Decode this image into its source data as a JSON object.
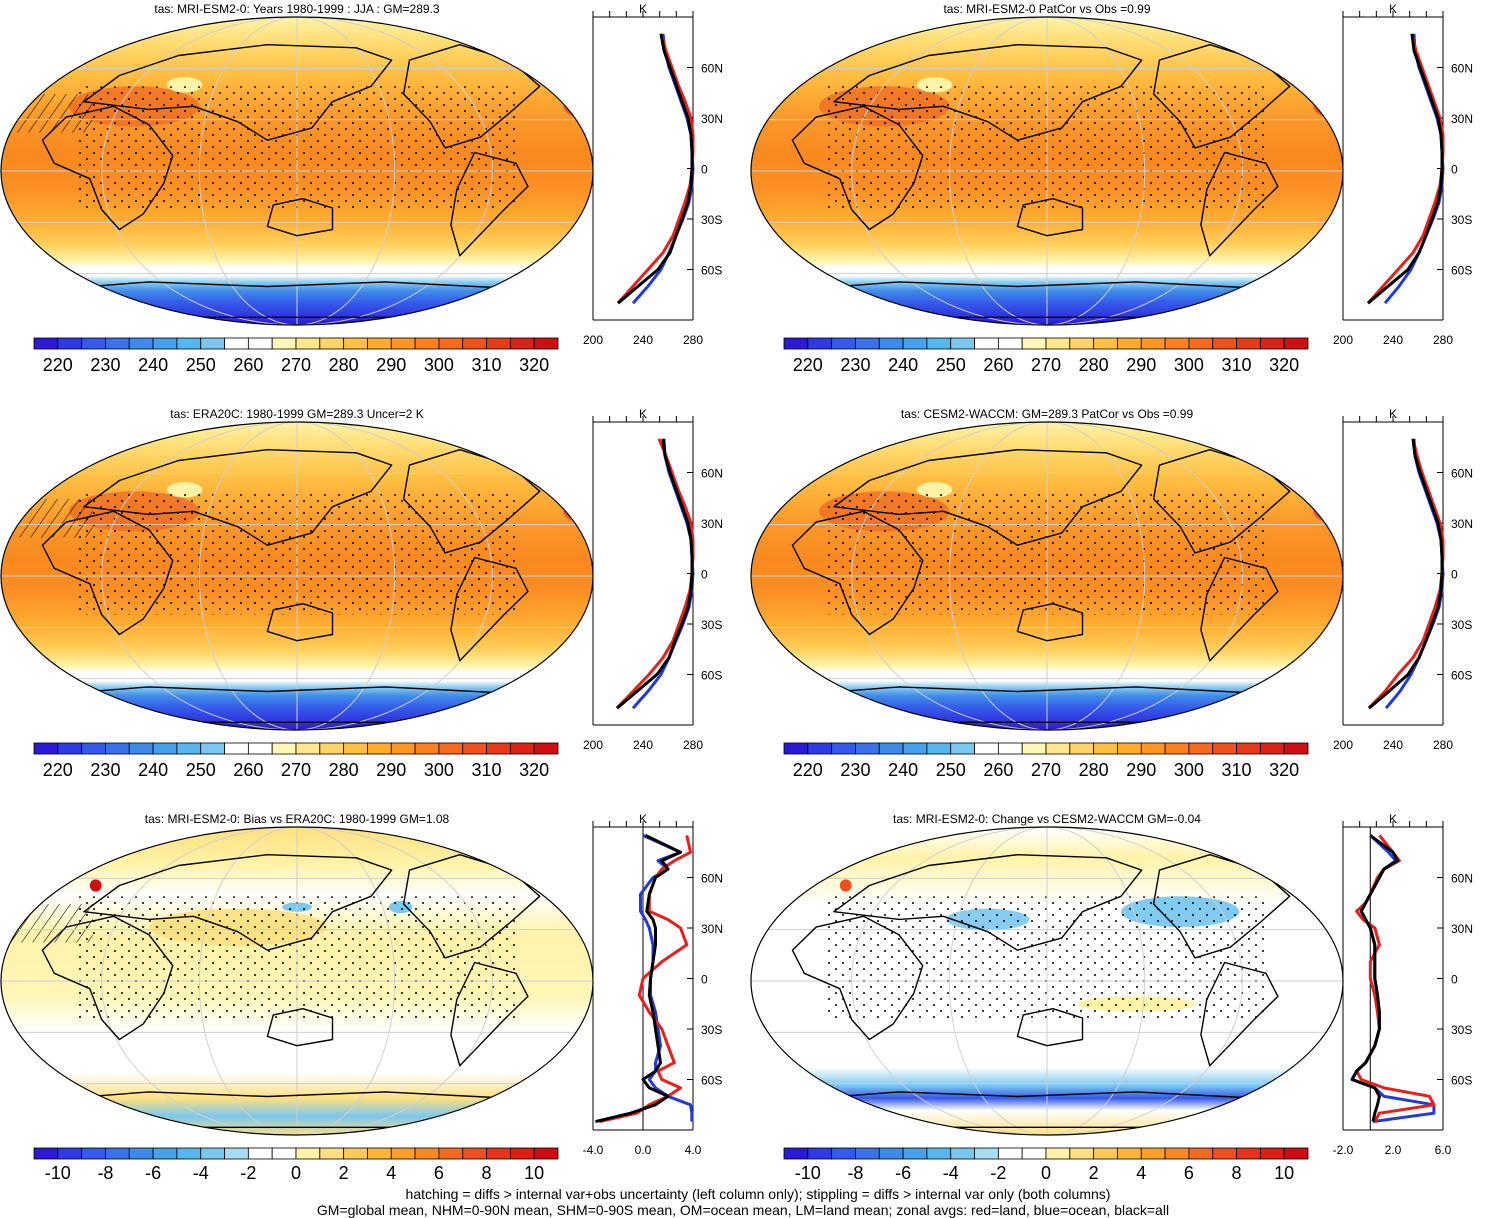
{
  "colors": {
    "temp_palette": [
      "#2a1ad8",
      "#2f3ae6",
      "#3559ea",
      "#3b72ea",
      "#3f8be9",
      "#45a1ea",
      "#55b7ee",
      "#7ac7f0",
      "#ffffff",
      "#ffffff",
      "#fff8b8",
      "#ffe98c",
      "#ffd468",
      "#ffc043",
      "#ffac2c",
      "#ff9822",
      "#fb8021",
      "#f56a1f",
      "#ef521c",
      "#e63a19",
      "#dc2216",
      "#cf0f12"
    ],
    "diff_palette": [
      "#2a1ad8",
      "#2f3ae6",
      "#3559ea",
      "#3b72ea",
      "#3f8be9",
      "#45a1ea",
      "#55b7ee",
      "#7ac7f0",
      "#a8dbf4",
      "#ffffff",
      "#ffffff",
      "#fff3a8",
      "#ffe080",
      "#ffc95a",
      "#ffb53a",
      "#ff9f28",
      "#fb8821",
      "#f56a1f",
      "#ef4f1c",
      "#e63418",
      "#dc1e15",
      "#cf0c12"
    ],
    "land": "#e6201c",
    "ocean": "#1f3bd8",
    "all": "#000000"
  },
  "footer": {
    "line1": "hatching = diffs > internal var+obs uncertainty (left column only); stippling = diffs > internal var only (both columns)",
    "line2": "GM=global mean, NHM=0-90N mean, SHM=0-90S mean, OM=ocean mean, LM=land mean; zonal avgs: red=land, blue=ocean, black=all"
  },
  "panels": [
    {
      "title": "tas: MRI-ESM2-0: Years 1980-1999 : JJA : GM=289.3",
      "colorbar": "temp",
      "profile_axis_label": "K",
      "profile_xticks": [
        "200",
        "240",
        "280"
      ]
    },
    {
      "title": "tas: MRI-ESM2-0 PatCor vs Obs =0.99",
      "colorbar": "temp",
      "profile_axis_label": "K",
      "profile_xticks": [
        "200",
        "240",
        "280"
      ]
    },
    {
      "title": "tas: ERA20C: 1980-1999 GM=289.3 Uncer=2 K",
      "colorbar": "temp",
      "profile_axis_label": "K",
      "profile_xticks": [
        "200",
        "240",
        "280"
      ]
    },
    {
      "title": "tas: CESM2-WACCM: GM=289.3 PatCor vs Obs =0.99",
      "colorbar": "temp",
      "profile_axis_label": "K",
      "profile_xticks": [
        "200",
        "240",
        "280"
      ]
    },
    {
      "title": "tas: MRI-ESM2-0: Bias vs ERA20C: 1980-1999 GM=1.08",
      "colorbar": "diff",
      "profile_axis_label": "K",
      "profile_xticks": [
        "-4.0",
        "0.0",
        "4.0"
      ]
    },
    {
      "title": "tas: MRI-ESM2-0: Change vs CESM2-WACCM GM=-0.04",
      "colorbar": "diff",
      "profile_axis_label": "K",
      "profile_xticks": [
        "-2.0",
        "2.0",
        "6.0"
      ]
    }
  ],
  "colorbars": {
    "temp": {
      "labels": [
        "220",
        "230",
        "240",
        "250",
        "260",
        "270",
        "280",
        "290",
        "300",
        "310",
        "320"
      ]
    },
    "diff": {
      "labels": [
        "-10",
        "-8",
        "-6",
        "-4",
        "-2",
        "0",
        "2",
        "4",
        "6",
        "8",
        "10"
      ]
    }
  },
  "chart_data": [
    {
      "type": "heatmap",
      "map": "global surface air temperature (tas)",
      "title": "tas: MRI-ESM2-0: Years 1980-1999 : JJA : GM=289.3",
      "colorbar_range": [
        215,
        325
      ],
      "units": "K",
      "lat_ticks": [
        "60N",
        "30N",
        "0",
        "30S",
        "60S"
      ],
      "zonal_mean": {
        "lat": [
          80,
          70,
          60,
          50,
          40,
          30,
          20,
          10,
          0,
          -10,
          -20,
          -30,
          -40,
          -50,
          -60,
          -70,
          -80
        ],
        "all": [
          268,
          271,
          277,
          283,
          289,
          295,
          298,
          299,
          299,
          298,
          295,
          289,
          283,
          277,
          265,
          245,
          225
        ],
        "land": [
          268,
          273,
          279,
          285,
          292,
          298,
          300,
          300,
          299,
          297,
          292,
          286,
          280,
          270,
          255,
          240,
          225
        ],
        "ocean": [
          270,
          272,
          276,
          282,
          288,
          294,
          298,
          299,
          300,
          299,
          296,
          290,
          283,
          276,
          268,
          255,
          240
        ],
        "xlim": [
          200,
          300
        ]
      }
    },
    {
      "type": "heatmap",
      "map": "global surface air temperature (tas)",
      "title": "tas: MRI-ESM2-0 PatCor vs Obs =0.99",
      "colorbar_range": [
        215,
        325
      ],
      "units": "K",
      "lat_ticks": [
        "60N",
        "30N",
        "0",
        "30S",
        "60S"
      ],
      "zonal_mean": {
        "lat": [
          80,
          70,
          60,
          50,
          40,
          30,
          20,
          10,
          0,
          -10,
          -20,
          -30,
          -40,
          -50,
          -60,
          -70,
          -80
        ],
        "all": [
          269,
          271,
          277,
          283,
          289,
          295,
          298,
          299,
          299,
          298,
          295,
          289,
          283,
          276,
          265,
          245,
          225
        ],
        "land": [
          269,
          273,
          279,
          285,
          291,
          297,
          300,
          300,
          299,
          297,
          292,
          286,
          280,
          270,
          255,
          240,
          225
        ],
        "ocean": [
          271,
          272,
          276,
          282,
          288,
          294,
          298,
          299,
          300,
          299,
          296,
          290,
          283,
          276,
          268,
          256,
          242
        ],
        "xlim": [
          200,
          300
        ]
      }
    },
    {
      "type": "heatmap",
      "map": "global surface air temperature (tas)",
      "title": "tas: ERA20C: 1980-1999 GM=289.3 Uncer=2 K",
      "colorbar_range": [
        215,
        325
      ],
      "units": "K",
      "lat_ticks": [
        "60N",
        "30N",
        "0",
        "30S",
        "60S"
      ],
      "zonal_mean": {
        "lat": [
          80,
          70,
          60,
          50,
          40,
          30,
          20,
          10,
          0,
          -10,
          -20,
          -30,
          -40,
          -50,
          -60,
          -70,
          -80
        ],
        "all": [
          270,
          272,
          277,
          283,
          289,
          295,
          298,
          299,
          299,
          298,
          295,
          289,
          282,
          276,
          264,
          244,
          224
        ],
        "land": [
          266,
          273,
          279,
          285,
          292,
          298,
          300,
          300,
          299,
          297,
          292,
          286,
          280,
          270,
          256,
          240,
          224
        ],
        "ocean": [
          271,
          272,
          276,
          282,
          288,
          294,
          298,
          299,
          300,
          299,
          296,
          290,
          283,
          276,
          268,
          255,
          240
        ],
        "xlim": [
          200,
          300
        ]
      }
    },
    {
      "type": "heatmap",
      "map": "global surface air temperature (tas)",
      "title": "tas: CESM2-WACCM: GM=289.3 PatCor vs Obs =0.99",
      "colorbar_range": [
        215,
        325
      ],
      "units": "K",
      "lat_ticks": [
        "60N",
        "30N",
        "0",
        "30S",
        "60S"
      ],
      "zonal_mean": {
        "lat": [
          80,
          70,
          60,
          50,
          40,
          30,
          20,
          10,
          0,
          -10,
          -20,
          -30,
          -40,
          -50,
          -60,
          -70,
          -80
        ],
        "all": [
          270,
          272,
          277,
          283,
          289,
          295,
          298,
          299,
          299,
          298,
          295,
          289,
          283,
          276,
          265,
          246,
          226
        ],
        "land": [
          270,
          274,
          279,
          285,
          291,
          297,
          300,
          300,
          299,
          297,
          292,
          286,
          280,
          270,
          255,
          242,
          226
        ],
        "ocean": [
          271,
          272,
          276,
          282,
          288,
          294,
          298,
          299,
          300,
          299,
          296,
          290,
          283,
          276,
          268,
          257,
          243
        ],
        "xlim": [
          200,
          300
        ]
      }
    },
    {
      "type": "heatmap",
      "map": "tas bias",
      "title": "tas: MRI-ESM2-0: Bias vs ERA20C: 1980-1999 GM=1.08",
      "colorbar_range": [
        -11,
        11
      ],
      "units": "K",
      "lat_ticks": [
        "60N",
        "30N",
        "0",
        "30S",
        "60S"
      ],
      "zonal_mean": {
        "lat": [
          85,
          75,
          70,
          65,
          60,
          50,
          40,
          35,
          30,
          20,
          10,
          0,
          -10,
          -20,
          -30,
          -40,
          -50,
          -55,
          -60,
          -65,
          -70,
          -75,
          -80,
          -85
        ],
        "all": [
          0.2,
          3.0,
          1.5,
          2.0,
          1.0,
          0.5,
          0.3,
          0.8,
          1.0,
          1.0,
          0.8,
          0.6,
          0.5,
          0.8,
          1.0,
          1.2,
          1.4,
          1.0,
          0.0,
          0.5,
          2.0,
          1.0,
          -1.0,
          -3.8
        ],
        "land": [
          3.5,
          3.8,
          2.5,
          1.5,
          1.0,
          0.5,
          0.5,
          2.0,
          3.0,
          3.5,
          1.5,
          0.0,
          -0.3,
          0.5,
          1.5,
          2.0,
          2.5,
          1.2,
          1.5,
          3.0,
          2.0,
          0.5,
          -0.5,
          -3.5
        ],
        "ocean": [
          0.0,
          3.0,
          1.2,
          2.0,
          0.8,
          -0.2,
          -0.2,
          0.2,
          0.5,
          0.8,
          0.8,
          0.6,
          0.6,
          1.0,
          1.2,
          1.4,
          1.0,
          1.0,
          0.5,
          1.0,
          2.0,
          3.8,
          3.9,
          3.9
        ],
        "xlim": [
          -4,
          4
        ]
      }
    },
    {
      "type": "heatmap",
      "map": "tas change",
      "title": "tas: MRI-ESM2-0: Change vs CESM2-WACCM GM=-0.04",
      "colorbar_range": [
        -11,
        11
      ],
      "units": "K",
      "lat_ticks": [
        "60N",
        "30N",
        "0",
        "30S",
        "60S"
      ],
      "zonal_mean": {
        "lat": [
          85,
          75,
          70,
          65,
          60,
          50,
          45,
          40,
          35,
          30,
          20,
          10,
          0,
          -10,
          -20,
          -30,
          -40,
          -50,
          -55,
          -60,
          -65,
          -70,
          -75,
          -80,
          -85
        ],
        "all": [
          0.0,
          2.5,
          3.0,
          1.5,
          1.0,
          0.0,
          -0.5,
          -1.0,
          -0.5,
          0.0,
          0.5,
          0.5,
          0.5,
          0.8,
          1.0,
          1.0,
          0.5,
          -0.5,
          -1.5,
          -2.0,
          0.5,
          1.0,
          0.8,
          0.5,
          0.3
        ],
        "land": [
          1.0,
          2.5,
          3.2,
          1.5,
          0.8,
          0.0,
          -0.5,
          -1.5,
          -0.8,
          0.5,
          1.0,
          0.0,
          0.0,
          0.5,
          0.8,
          1.0,
          0.5,
          -0.5,
          -1.5,
          -1.0,
          1.5,
          6.5,
          7.0,
          1.0,
          0.5
        ],
        "ocean": [
          0.0,
          2.0,
          2.8,
          1.5,
          1.0,
          0.0,
          -0.5,
          -1.0,
          -0.5,
          0.0,
          0.5,
          0.5,
          0.5,
          0.8,
          1.0,
          1.0,
          0.5,
          -0.5,
          -1.5,
          -2.0,
          0.5,
          1.5,
          7.0,
          7.0,
          0.3
        ],
        "xlim": [
          -3,
          8
        ]
      }
    }
  ]
}
